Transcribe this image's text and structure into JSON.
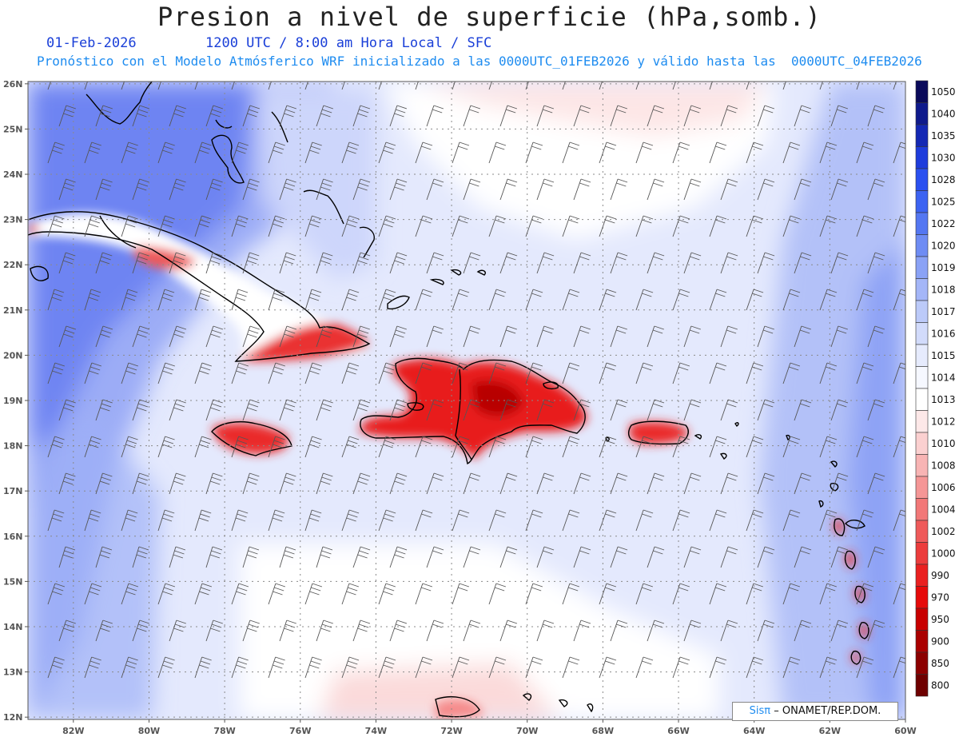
{
  "title": "Presion a nivel de superficie (hPa,somb.)",
  "date_label": "01-Feb-2026",
  "time_label": "1200 UTC / 8:00 am Hora Local / SFC",
  "forecast_label": "Pronóstico con el Modelo Atmósferico WRF inicializado a las 0000UTC_01FEB2026 y válido hasta las  0000UTC_04FEB2026",
  "credit": {
    "logo": "Sisπ",
    "text": "– ONAMET/REP.DOM."
  },
  "colorbar": {
    "labels": [
      "1050",
      "1040",
      "1035",
      "1030",
      "1028",
      "1025",
      "1022",
      "1020",
      "1019",
      "1018",
      "1017",
      "1016",
      "1015",
      "1014",
      "1013",
      "1012",
      "1010",
      "1008",
      "1006",
      "1004",
      "1002",
      "1000",
      "990",
      "970",
      "950",
      "900",
      "850",
      "800"
    ],
    "colors": [
      "#0a0a5a",
      "#0f1a8c",
      "#1428b4",
      "#1e3cdc",
      "#2a50f0",
      "#3c63f2",
      "#5477f2",
      "#6e8cf4",
      "#8aa2f6",
      "#a4b6f8",
      "#bccaf9",
      "#d2dbfb",
      "#e6ebfd",
      "#f6f8ff",
      "#ffffff",
      "#fde8e8",
      "#fbd0d0",
      "#f8b4b4",
      "#f59696",
      "#f27878",
      "#ef5a5a",
      "#ec3c3c",
      "#ea2020",
      "#e60a0a",
      "#c80000",
      "#aa0000",
      "#8c0000",
      "#6e0000"
    ]
  },
  "axes": {
    "lat_labels": [
      "26N",
      "25N",
      "24N",
      "23N",
      "22N",
      "21N",
      "20N",
      "19N",
      "18N",
      "17N",
      "16N",
      "15N",
      "14N",
      "13N",
      "12N"
    ],
    "lon_labels": [
      "82W",
      "80W",
      "78W",
      "76W",
      "74W",
      "72W",
      "70W",
      "68W",
      "66W",
      "64W",
      "62W",
      "60W"
    ]
  }
}
